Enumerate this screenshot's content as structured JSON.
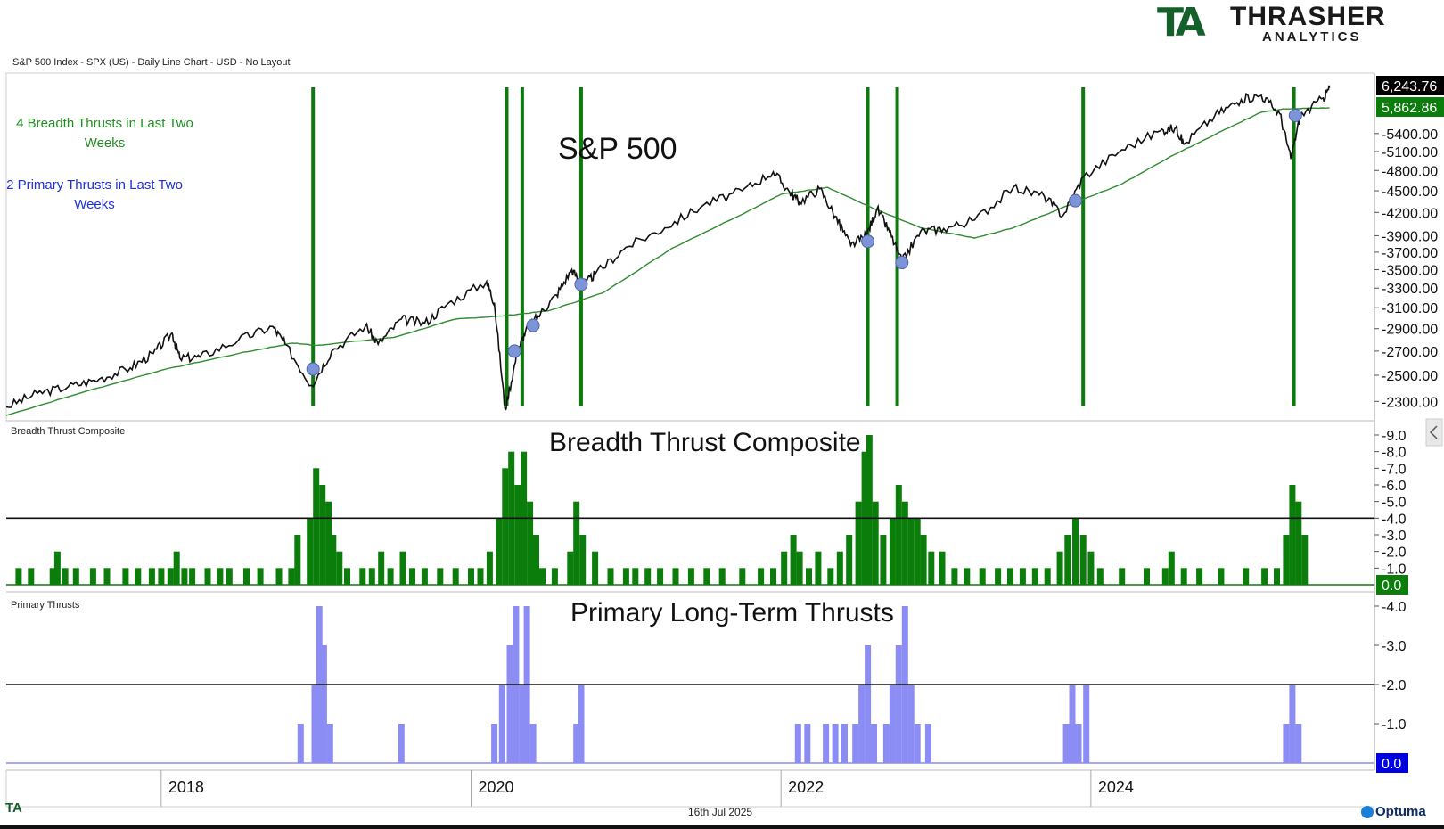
{
  "header": {
    "chart_info": "S&P 500 Index - SPX (US) - Daily Line Chart - USD - No Layout",
    "logo_text": "THRASHER",
    "logo_sub": "ANALYTICS",
    "logo_mark": "TA"
  },
  "notes": {
    "breadth": "4 Breadth Thrusts in Last Two Weeks",
    "primary": "2 Primary Thrusts in Last Two Weeks"
  },
  "footer": {
    "date": "16th Jul 2025",
    "left_logo": "TA",
    "brand": "Optuma"
  },
  "colors": {
    "price_line": "#111111",
    "moving_average": "#2e8b2e",
    "thrust_line": "#0e7a0e",
    "marker": "#7d95d8",
    "breadth_bars": "#0b7d0b",
    "primary_bars": "#8c8cf5",
    "current_price_badge": "#000000",
    "ma_badge": "#0b7d0b",
    "primary_badge": "#0000e0"
  },
  "chart_data": [
    {
      "type": "line",
      "title": "S&P 500",
      "panel_label": "",
      "y_ticks": [
        "2300.00",
        "2500.00",
        "2700.00",
        "2900.00",
        "3100.00",
        "3300.00",
        "3500.00",
        "3700.00",
        "3900.00",
        "4200.00",
        "4500.00",
        "4800.00",
        "5100.00",
        "5400.00"
      ],
      "ylim": [
        2200,
        6400
      ],
      "y_scale": "log",
      "current_value": "6,243.76",
      "ma_value": "5,862.86",
      "x_ticks": [
        "2018",
        "2020",
        "2022",
        "2024"
      ],
      "xlim": [
        2017.0,
        2025.6
      ],
      "series": [
        {
          "key": "price",
          "points": [
            [
              2017.0,
              2260
            ],
            [
              2017.2,
              2360
            ],
            [
              2017.4,
              2410
            ],
            [
              2017.6,
              2470
            ],
            [
              2017.8,
              2560
            ],
            [
              2017.95,
              2680
            ],
            [
              2018.07,
              2860
            ],
            [
              2018.12,
              2640
            ],
            [
              2018.25,
              2650
            ],
            [
              2018.5,
              2800
            ],
            [
              2018.72,
              2920
            ],
            [
              2018.8,
              2760
            ],
            [
              2018.97,
              2420
            ],
            [
              2019.1,
              2700
            ],
            [
              2019.32,
              2930
            ],
            [
              2019.4,
              2760
            ],
            [
              2019.55,
              2990
            ],
            [
              2019.7,
              2950
            ],
            [
              2019.85,
              3140
            ],
            [
              2020.1,
              3370
            ],
            [
              2020.15,
              3150
            ],
            [
              2020.22,
              2240
            ],
            [
              2020.3,
              2700
            ],
            [
              2020.35,
              2870
            ],
            [
              2020.45,
              3050
            ],
            [
              2020.55,
              3230
            ],
            [
              2020.65,
              3500
            ],
            [
              2020.72,
              3320
            ],
            [
              2020.8,
              3450
            ],
            [
              2021.0,
              3760
            ],
            [
              2021.25,
              4000
            ],
            [
              2021.5,
              4300
            ],
            [
              2021.75,
              4500
            ],
            [
              2021.95,
              4780
            ],
            [
              2022.05,
              4500
            ],
            [
              2022.12,
              4340
            ],
            [
              2022.25,
              4530
            ],
            [
              2022.35,
              4150
            ],
            [
              2022.45,
              3780
            ],
            [
              2022.55,
              3900
            ],
            [
              2022.62,
              4250
            ],
            [
              2022.7,
              3950
            ],
            [
              2022.78,
              3590
            ],
            [
              2022.9,
              3950
            ],
            [
              2023.05,
              3990
            ],
            [
              2023.25,
              4100
            ],
            [
              2023.5,
              4550
            ],
            [
              2023.7,
              4420
            ],
            [
              2023.82,
              4160
            ],
            [
              2023.95,
              4700
            ],
            [
              2024.2,
              5130
            ],
            [
              2024.45,
              5450
            ],
            [
              2024.55,
              5500
            ],
            [
              2024.6,
              5220
            ],
            [
              2024.8,
              5720
            ],
            [
              2024.97,
              6020
            ],
            [
              2025.1,
              6100
            ],
            [
              2025.22,
              5750
            ],
            [
              2025.29,
              4980
            ],
            [
              2025.35,
              5700
            ],
            [
              2025.5,
              6050
            ],
            [
              2025.54,
              6243.76
            ]
          ]
        },
        {
          "key": "ma",
          "points": [
            [
              2017.0,
              2200
            ],
            [
              2017.5,
              2370
            ],
            [
              2018.0,
              2540
            ],
            [
              2018.5,
              2680
            ],
            [
              2018.85,
              2770
            ],
            [
              2019.0,
              2750
            ],
            [
              2019.5,
              2820
            ],
            [
              2019.9,
              2990
            ],
            [
              2020.2,
              3020
            ],
            [
              2020.5,
              3070
            ],
            [
              2020.85,
              3250
            ],
            [
              2021.3,
              3750
            ],
            [
              2021.8,
              4230
            ],
            [
              2022.0,
              4450
            ],
            [
              2022.3,
              4550
            ],
            [
              2022.6,
              4250
            ],
            [
              2022.9,
              4000
            ],
            [
              2023.25,
              3870
            ],
            [
              2023.5,
              4000
            ],
            [
              2023.8,
              4250
            ],
            [
              2024.2,
              4600
            ],
            [
              2024.5,
              5000
            ],
            [
              2024.85,
              5450
            ],
            [
              2025.1,
              5780
            ],
            [
              2025.25,
              5840
            ],
            [
              2025.54,
              5862.86
            ]
          ]
        }
      ],
      "thrust_dates": [
        2018.98,
        2020.23,
        2020.33,
        2020.71,
        2022.56,
        2022.75,
        2023.95,
        2025.31
      ],
      "markers": [
        [
          2018.98,
          2550
        ],
        [
          2020.28,
          2700
        ],
        [
          2020.4,
          2930
        ],
        [
          2020.71,
          3340
        ],
        [
          2022.56,
          3830
        ],
        [
          2022.78,
          3580
        ],
        [
          2023.9,
          4360
        ],
        [
          2025.32,
          5720
        ]
      ]
    },
    {
      "type": "bar",
      "title": "Breadth Thrust Composite",
      "panel_label": "Breadth Thrust Composite",
      "y_ticks": [
        "1.0",
        "2.0",
        "3.0",
        "4.0",
        "5.0",
        "6.0",
        "7.0",
        "8.0",
        "9.0"
      ],
      "ylim": [
        0,
        9
      ],
      "threshold": 4,
      "current_value": "0.0",
      "bars": [
        [
          2017.08,
          1
        ],
        [
          2017.16,
          1
        ],
        [
          2017.3,
          1
        ],
        [
          2017.33,
          2
        ],
        [
          2017.38,
          1
        ],
        [
          2017.45,
          1
        ],
        [
          2017.56,
          1
        ],
        [
          2017.65,
          1
        ],
        [
          2017.77,
          1
        ],
        [
          2017.85,
          1
        ],
        [
          2017.94,
          1
        ],
        [
          2018.0,
          1
        ],
        [
          2018.06,
          1
        ],
        [
          2018.1,
          2
        ],
        [
          2018.15,
          1
        ],
        [
          2018.2,
          1
        ],
        [
          2018.3,
          1
        ],
        [
          2018.38,
          1
        ],
        [
          2018.44,
          1
        ],
        [
          2018.55,
          1
        ],
        [
          2018.64,
          1
        ],
        [
          2018.76,
          1
        ],
        [
          2018.84,
          1
        ],
        [
          2018.88,
          3
        ],
        [
          2018.96,
          4
        ],
        [
          2019.0,
          7
        ],
        [
          2019.04,
          6
        ],
        [
          2019.08,
          5
        ],
        [
          2019.11,
          3
        ],
        [
          2019.15,
          2
        ],
        [
          2019.2,
          1
        ],
        [
          2019.3,
          1
        ],
        [
          2019.36,
          1
        ],
        [
          2019.42,
          2
        ],
        [
          2019.48,
          1
        ],
        [
          2019.56,
          2
        ],
        [
          2019.62,
          1
        ],
        [
          2019.7,
          1
        ],
        [
          2019.8,
          1
        ],
        [
          2019.9,
          1
        ],
        [
          2020.0,
          1
        ],
        [
          2020.06,
          1
        ],
        [
          2020.12,
          2
        ],
        [
          2020.18,
          4
        ],
        [
          2020.22,
          7
        ],
        [
          2020.26,
          8
        ],
        [
          2020.3,
          6
        ],
        [
          2020.34,
          8
        ],
        [
          2020.38,
          5
        ],
        [
          2020.42,
          3
        ],
        [
          2020.46,
          1
        ],
        [
          2020.54,
          1
        ],
        [
          2020.64,
          2
        ],
        [
          2020.68,
          5
        ],
        [
          2020.72,
          3
        ],
        [
          2020.8,
          2
        ],
        [
          2020.9,
          1
        ],
        [
          2021.0,
          1
        ],
        [
          2021.06,
          1
        ],
        [
          2021.14,
          1
        ],
        [
          2021.22,
          1
        ],
        [
          2021.32,
          1
        ],
        [
          2021.42,
          1
        ],
        [
          2021.52,
          1
        ],
        [
          2021.62,
          1
        ],
        [
          2021.75,
          1
        ],
        [
          2021.87,
          1
        ],
        [
          2021.95,
          1
        ],
        [
          2022.02,
          2
        ],
        [
          2022.08,
          3
        ],
        [
          2022.12,
          2
        ],
        [
          2022.18,
          1
        ],
        [
          2022.24,
          2
        ],
        [
          2022.32,
          1
        ],
        [
          2022.38,
          2
        ],
        [
          2022.44,
          3
        ],
        [
          2022.5,
          5
        ],
        [
          2022.54,
          8
        ],
        [
          2022.57,
          9
        ],
        [
          2022.61,
          5
        ],
        [
          2022.66,
          3
        ],
        [
          2022.72,
          4
        ],
        [
          2022.76,
          6
        ],
        [
          2022.8,
          5
        ],
        [
          2022.84,
          4
        ],
        [
          2022.88,
          4
        ],
        [
          2022.92,
          3
        ],
        [
          2022.97,
          2
        ],
        [
          2023.04,
          2
        ],
        [
          2023.12,
          1
        ],
        [
          2023.2,
          1
        ],
        [
          2023.3,
          1
        ],
        [
          2023.4,
          1
        ],
        [
          2023.48,
          1
        ],
        [
          2023.56,
          1
        ],
        [
          2023.64,
          1
        ],
        [
          2023.72,
          1
        ],
        [
          2023.8,
          2
        ],
        [
          2023.85,
          3
        ],
        [
          2023.9,
          4
        ],
        [
          2023.95,
          3
        ],
        [
          2024.0,
          2
        ],
        [
          2024.06,
          1
        ],
        [
          2024.2,
          1
        ],
        [
          2024.36,
          1
        ],
        [
          2024.48,
          1
        ],
        [
          2024.52,
          2
        ],
        [
          2024.6,
          1
        ],
        [
          2024.7,
          1
        ],
        [
          2024.84,
          1
        ],
        [
          2025.0,
          1
        ],
        [
          2025.12,
          1
        ],
        [
          2025.2,
          1
        ],
        [
          2025.26,
          3
        ],
        [
          2025.3,
          6
        ],
        [
          2025.34,
          5
        ],
        [
          2025.38,
          3
        ]
      ]
    },
    {
      "type": "bar",
      "title": "Primary Long-Term Thrusts",
      "panel_label": "Primary Thrusts",
      "y_ticks": [
        "1.0",
        "2.0",
        "3.0",
        "4.0"
      ],
      "ylim": [
        0,
        4
      ],
      "threshold": 2,
      "current_value": "0.0",
      "bars": [
        [
          2018.9,
          1
        ],
        [
          2018.99,
          2
        ],
        [
          2019.02,
          4
        ],
        [
          2019.05,
          3
        ],
        [
          2019.09,
          1
        ],
        [
          2019.55,
          1
        ],
        [
          2020.15,
          1
        ],
        [
          2020.2,
          2
        ],
        [
          2020.25,
          3
        ],
        [
          2020.29,
          4
        ],
        [
          2020.33,
          2
        ],
        [
          2020.36,
          4
        ],
        [
          2020.4,
          1
        ],
        [
          2020.68,
          1
        ],
        [
          2020.71,
          2
        ],
        [
          2022.11,
          1
        ],
        [
          2022.17,
          1
        ],
        [
          2022.29,
          1
        ],
        [
          2022.35,
          1
        ],
        [
          2022.41,
          1
        ],
        [
          2022.48,
          1
        ],
        [
          2022.52,
          2
        ],
        [
          2022.56,
          3
        ],
        [
          2022.6,
          1
        ],
        [
          2022.68,
          1
        ],
        [
          2022.72,
          2
        ],
        [
          2022.76,
          3
        ],
        [
          2022.8,
          4
        ],
        [
          2022.84,
          2
        ],
        [
          2022.88,
          1
        ],
        [
          2022.95,
          1
        ],
        [
          2023.84,
          1
        ],
        [
          2023.88,
          2
        ],
        [
          2023.92,
          1
        ],
        [
          2023.97,
          2
        ],
        [
          2025.26,
          1
        ],
        [
          2025.3,
          2
        ],
        [
          2025.34,
          1
        ]
      ]
    }
  ]
}
